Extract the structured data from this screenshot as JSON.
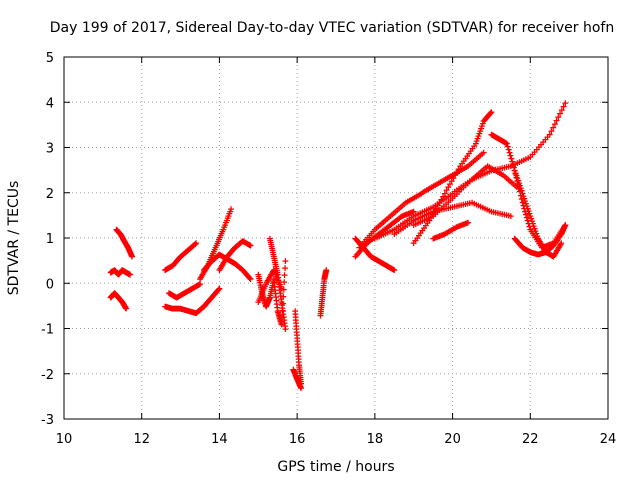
{
  "chart_data": {
    "type": "scatter",
    "title": "Day 199 of 2017, Sidereal Day-to-day VTEC variation (SDTVAR) for receiver hofn",
    "xlabel": "GPS time / hours",
    "ylabel": "SDTVAR / TECUs",
    "xlim": [
      10,
      24
    ],
    "ylim": [
      -3,
      5
    ],
    "xticks": [
      "10",
      "12",
      "14",
      "16",
      "18",
      "20",
      "22",
      "24"
    ],
    "yticks": [
      "-3",
      "-2",
      "-1",
      "0",
      "1",
      "2",
      "3",
      "4",
      "5"
    ],
    "grid": true,
    "marker": "+",
    "marker_color": "#ff0000",
    "series": [
      {
        "name": "arc1",
        "x": [
          11.2,
          11.3,
          11.4,
          11.5,
          11.6,
          11.7
        ],
        "y": [
          0.25,
          0.3,
          0.2,
          0.3,
          0.25,
          0.2
        ]
      },
      {
        "name": "arc2",
        "x": [
          11.2,
          11.3,
          11.4,
          11.5,
          11.6
        ],
        "y": [
          -0.3,
          -0.2,
          -0.3,
          -0.4,
          -0.55
        ]
      },
      {
        "name": "arc3",
        "x": [
          11.35,
          11.45,
          11.55,
          11.65,
          11.75
        ],
        "y": [
          1.2,
          1.1,
          0.95,
          0.8,
          0.6
        ]
      },
      {
        "name": "arc4",
        "x": [
          12.6,
          12.8,
          13.0,
          13.2,
          13.4
        ],
        "y": [
          0.3,
          0.4,
          0.6,
          0.75,
          0.9
        ]
      },
      {
        "name": "arc5",
        "x": [
          12.6,
          12.8,
          13.0,
          13.2,
          13.4,
          13.6,
          13.8,
          14.0
        ],
        "y": [
          -0.5,
          -0.55,
          -0.55,
          -0.6,
          -0.65,
          -0.5,
          -0.3,
          -0.1
        ]
      },
      {
        "name": "arc6",
        "x": [
          12.7,
          12.9,
          13.1,
          13.3,
          13.5
        ],
        "y": [
          -0.2,
          -0.3,
          -0.2,
          -0.1,
          0.0
        ]
      },
      {
        "name": "arc7",
        "x": [
          13.5,
          13.7,
          13.9,
          14.1,
          14.3
        ],
        "y": [
          0.1,
          0.4,
          0.8,
          1.2,
          1.65
        ]
      },
      {
        "name": "arc8",
        "x": [
          13.6,
          13.8,
          14.0,
          14.2,
          14.4,
          14.6,
          14.8
        ],
        "y": [
          0.3,
          0.5,
          0.65,
          0.55,
          0.45,
          0.3,
          0.1
        ]
      },
      {
        "name": "arc9",
        "x": [
          14.0,
          14.2,
          14.4,
          14.6,
          14.8
        ],
        "y": [
          0.3,
          0.6,
          0.8,
          0.95,
          0.85
        ]
      },
      {
        "name": "arc10",
        "x": [
          15.0,
          15.1,
          15.2,
          15.3,
          15.4,
          15.5,
          15.6,
          15.7
        ],
        "y": [
          0.2,
          -0.2,
          -0.5,
          -0.3,
          0.1,
          -0.6,
          -0.9,
          0.5
        ]
      },
      {
        "name": "arc11",
        "x": [
          15.0,
          15.2,
          15.4,
          15.6
        ],
        "y": [
          -0.4,
          0.0,
          0.3,
          -0.1
        ]
      },
      {
        "name": "arc12",
        "x": [
          15.3,
          15.4,
          15.5,
          15.6,
          15.7
        ],
        "y": [
          1.0,
          0.6,
          0.2,
          -0.4,
          -1.0
        ]
      },
      {
        "name": "arc13",
        "x": [
          15.95,
          16.0,
          16.05,
          16.1
        ],
        "y": [
          -0.6,
          -1.2,
          -1.8,
          -2.2
        ]
      },
      {
        "name": "arc14",
        "x": [
          15.9,
          16.0,
          16.1
        ],
        "y": [
          -1.9,
          -2.1,
          -2.3
        ]
      },
      {
        "name": "arc15",
        "x": [
          16.6,
          16.65,
          16.7,
          16.75
        ],
        "y": [
          -0.7,
          -0.3,
          0.1,
          0.3
        ]
      },
      {
        "name": "arc16",
        "x": [
          17.5,
          17.7,
          17.9,
          18.1,
          18.3,
          18.5
        ],
        "y": [
          1.0,
          0.8,
          0.6,
          0.5,
          0.4,
          0.3
        ]
      },
      {
        "name": "arc17",
        "x": [
          17.5,
          17.8,
          18.1,
          18.4,
          18.7,
          19.0
        ],
        "y": [
          0.6,
          0.9,
          1.1,
          1.3,
          1.5,
          1.6
        ]
      },
      {
        "name": "arc18",
        "x": [
          17.6,
          18.0,
          18.4,
          18.8,
          19.2,
          19.6,
          20.0,
          20.4,
          20.8
        ],
        "y": [
          0.8,
          1.2,
          1.5,
          1.8,
          2.0,
          2.2,
          2.4,
          2.6,
          2.9
        ]
      },
      {
        "name": "arc19",
        "x": [
          18.0,
          18.5,
          19.0,
          19.5,
          20.0,
          20.5,
          21.0,
          21.5,
          22.0,
          22.5,
          22.9
        ],
        "y": [
          1.0,
          1.2,
          1.5,
          1.7,
          2.0,
          2.3,
          2.5,
          2.6,
          2.8,
          3.3,
          4.0
        ]
      },
      {
        "name": "arc20",
        "x": [
          18.5,
          19.0,
          19.5,
          20.0,
          20.5,
          21.0,
          21.5
        ],
        "y": [
          1.1,
          1.4,
          1.6,
          1.7,
          1.8,
          1.6,
          1.5
        ]
      },
      {
        "name": "arc21",
        "x": [
          19.0,
          19.5,
          20.0,
          20.5,
          20.9,
          21.3,
          21.7
        ],
        "y": [
          1.3,
          1.5,
          1.9,
          2.3,
          2.6,
          2.4,
          2.1
        ]
      },
      {
        "name": "arc22",
        "x": [
          19.5,
          19.8,
          20.1,
          20.4
        ],
        "y": [
          1.0,
          1.1,
          1.25,
          1.35
        ]
      },
      {
        "name": "arc23",
        "x": [
          19.0,
          19.4,
          19.8,
          20.2,
          20.6,
          20.8,
          21.0
        ],
        "y": [
          0.9,
          1.4,
          2.0,
          2.6,
          3.1,
          3.6,
          3.8
        ]
      },
      {
        "name": "arc24",
        "x": [
          21.0,
          21.2,
          21.4,
          21.6,
          21.8,
          22.0,
          22.3,
          22.6,
          22.9
        ],
        "y": [
          3.3,
          3.2,
          3.1,
          2.5,
          1.8,
          1.2,
          0.8,
          0.9,
          1.3
        ]
      },
      {
        "name": "arc25",
        "x": [
          21.6,
          21.8,
          22.0,
          22.2,
          22.4,
          22.6,
          22.8
        ],
        "y": [
          2.5,
          2.0,
          1.5,
          1.0,
          0.7,
          0.6,
          0.9
        ]
      },
      {
        "name": "arc26",
        "x": [
          21.6,
          21.8,
          22.0,
          22.2,
          22.4,
          22.6,
          22.8,
          22.9
        ],
        "y": [
          1.0,
          0.8,
          0.7,
          0.65,
          0.7,
          0.85,
          1.1,
          1.3
        ]
      }
    ]
  }
}
